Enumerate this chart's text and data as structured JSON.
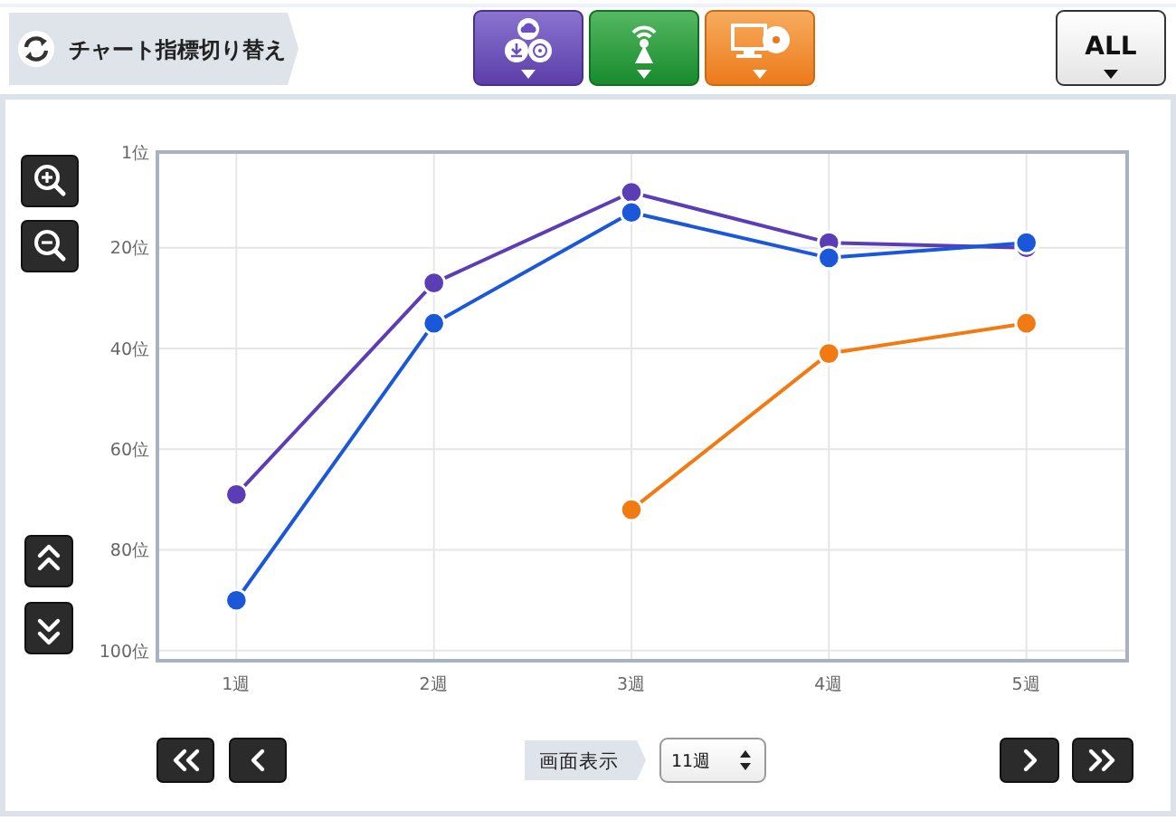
{
  "chart_data": {
    "type": "line",
    "categories": [
      "1週",
      "2週",
      "3週",
      "4週",
      "5週"
    ],
    "series": [
      {
        "color": "#5b3db5",
        "values": [
          69,
          27,
          9,
          19,
          20
        ]
      },
      {
        "color": "#1b58d9",
        "values": [
          90,
          35,
          13,
          22,
          19
        ]
      },
      {
        "color": "#f27a12",
        "values": [
          null,
          null,
          72,
          41,
          35
        ]
      }
    ],
    "ylim": [
      102,
      1
    ],
    "yticks": [
      {
        "value": 1,
        "label": "1位"
      },
      {
        "value": 20,
        "label": "20位"
      },
      {
        "value": 40,
        "label": "40位"
      },
      {
        "value": 60,
        "label": "60位"
      },
      {
        "value": 80,
        "label": "80位"
      },
      {
        "value": 100,
        "label": "100位"
      }
    ],
    "grid": true,
    "marker": "circle",
    "annotations": [
      "チャート指標切り替え",
      "ALL",
      "画面表示",
      "11週"
    ]
  }
}
